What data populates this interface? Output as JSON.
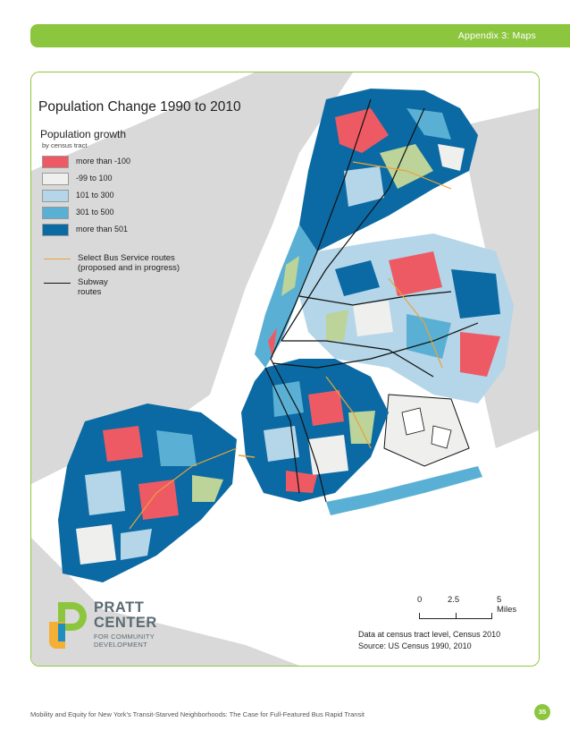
{
  "header": {
    "section_label": "Appendix 3: Maps"
  },
  "map": {
    "title": "Population Change 1990 to 2010",
    "legend": {
      "title": "Population growth",
      "subtitle": "by census tract",
      "classes": [
        {
          "label": "more than -100",
          "color": "#ee5a63"
        },
        {
          "label": "-99 to 100",
          "color": "#efefee"
        },
        {
          "label": "101 to 300",
          "color": "#b4d6e8"
        },
        {
          "label": "301 to 500",
          "color": "#5ab0d4"
        },
        {
          "label": "more than 501",
          "color": "#0b6aa3"
        }
      ],
      "lines": [
        {
          "label": "Select Bus Service routes (proposed and in progress)",
          "color": "#e8a33c"
        },
        {
          "label": "Subway routes",
          "color": "#111111"
        }
      ]
    },
    "scale_bar": {
      "ticks": [
        "0",
        "2.5",
        "5 Miles"
      ]
    },
    "credits": [
      "Data at census tract level, Census 2010",
      "Source: US Census 1990, 2010"
    ],
    "colors": {
      "land_other": "#d4d4d4",
      "parks": "#bcd39a",
      "water": "#ffffff"
    }
  },
  "logo": {
    "name_line1": "PRATT",
    "name_line2": "CENTER",
    "sub_line1": "FOR COMMUNITY",
    "sub_line2": "DEVELOPMENT"
  },
  "footer": {
    "text": "Mobility and Equity for New York's Transit-Starved Neighborhoods: The Case for Full-Featured Bus Rapid Transit",
    "page_number": "35"
  },
  "accent_color": "#8cc63f"
}
